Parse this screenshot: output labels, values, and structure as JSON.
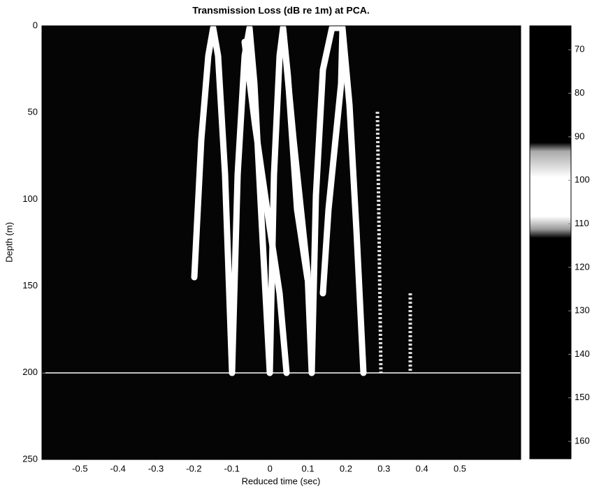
{
  "chart_data": {
    "type": "heatmap",
    "title": "Transmission Loss (dB re 1m) at PCA.",
    "x_label": "Reduced time (sec)",
    "y_label": "Depth (m)",
    "xlim": [
      -0.6,
      0.66
    ],
    "xticks": [
      -0.5,
      -0.4,
      -0.3,
      -0.2,
      -0.1,
      0,
      0.1,
      0.2,
      0.3,
      0.4,
      0.5
    ],
    "ylim": [
      0,
      250
    ],
    "y_reversed": true,
    "yticks": [
      0,
      50,
      100,
      150,
      200,
      250
    ],
    "colorbar": {
      "lim": [
        64.5,
        164
      ],
      "reversed": true,
      "ticks": [
        70,
        80,
        90,
        100,
        110,
        120,
        130,
        140,
        150,
        160
      ]
    }
  }
}
